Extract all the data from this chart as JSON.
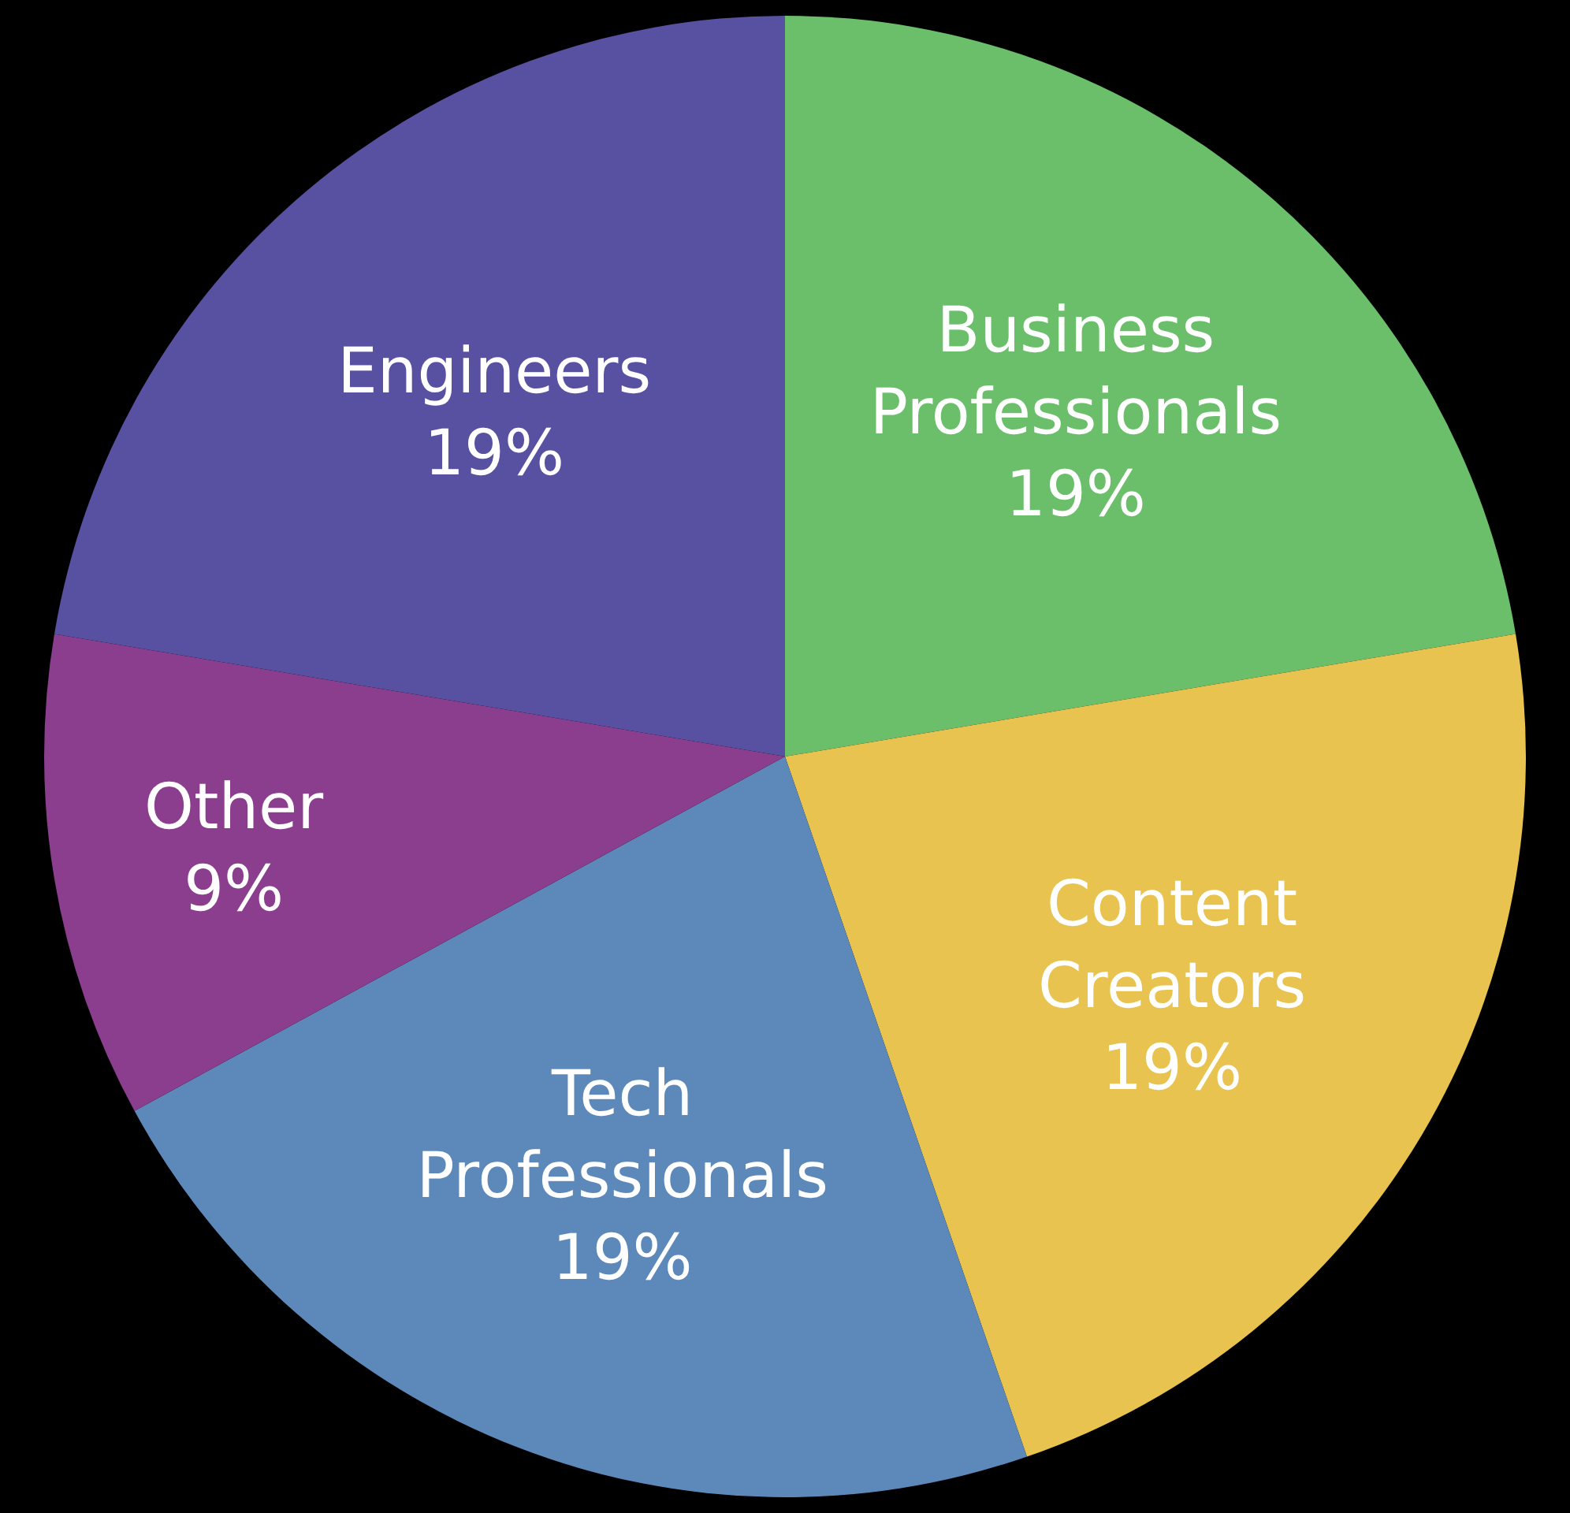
{
  "chart_data": {
    "type": "pie",
    "categories": [
      "Business Professionals",
      "Content Creators",
      "Tech Professionals",
      "Other",
      "Engineers"
    ],
    "values": [
      19,
      19,
      19,
      9,
      19
    ],
    "value_labels": [
      "19%",
      "19%",
      "19%",
      "9%",
      "19%"
    ],
    "colors": [
      "#6bbf6a",
      "#e8c350",
      "#5d89ba",
      "#8b3e8e",
      "#5851a2"
    ],
    "legend": false
  }
}
